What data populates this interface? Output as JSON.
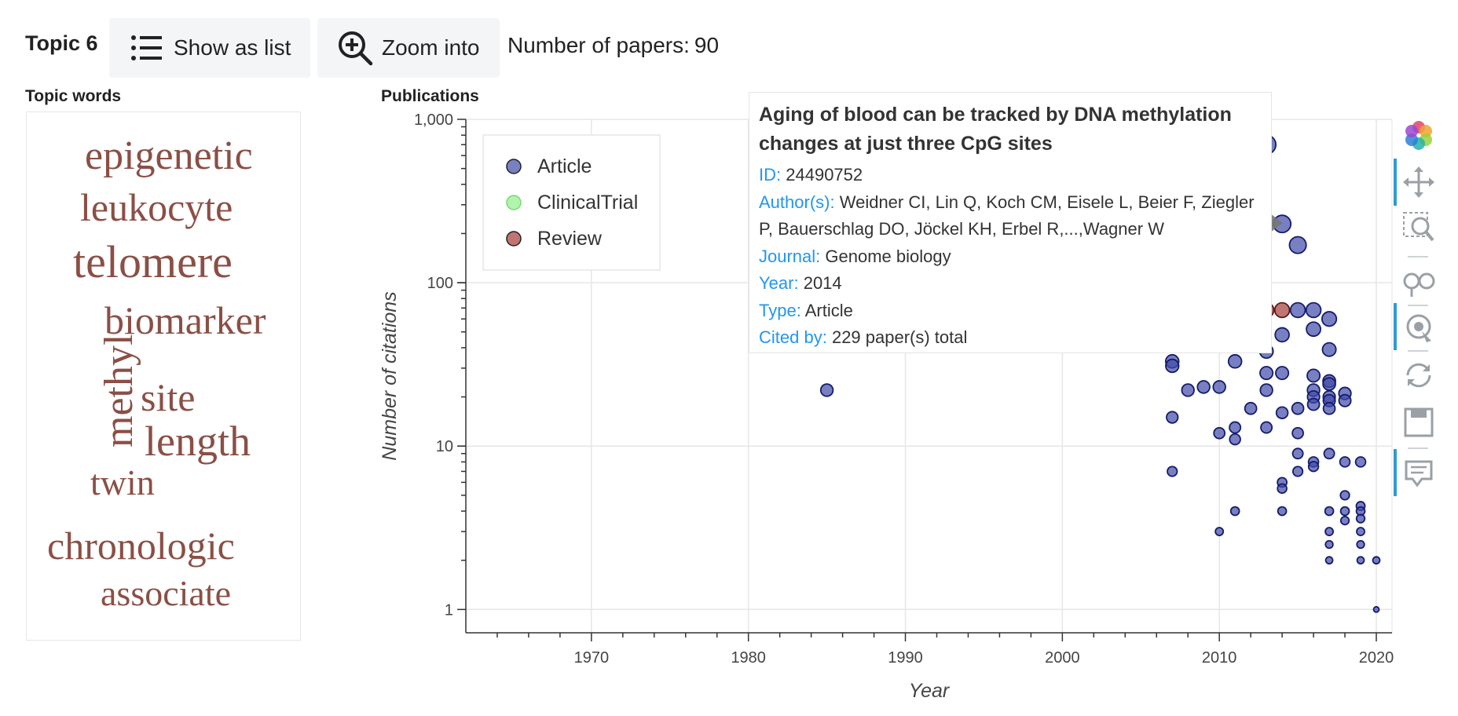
{
  "header": {
    "topic_title": "Topic 6",
    "show_as_list_label": "Show as list",
    "zoom_into_label": "Zoom into",
    "papers_label": "Number of papers:",
    "papers_count": "90"
  },
  "topic_words_label": "Topic words",
  "publications_label": "Publications",
  "topic_words": [
    "epigenetic",
    "leukocyte",
    "telomere",
    "biomarker",
    "methyl",
    "site",
    "length",
    "twin",
    "chronologic",
    "associate"
  ],
  "colors": {
    "article": "#3f4aa8",
    "clinical_trial": "#8ef08a",
    "review": "#a63a36",
    "word": "#8b4f45",
    "tooltip_key": "#2196f3"
  },
  "legend": [
    {
      "label": "Article",
      "color": "#3f4aa8"
    },
    {
      "label": "ClinicalTrial",
      "color": "#8ef08a"
    },
    {
      "label": "Review",
      "color": "#a63a36"
    }
  ],
  "tooltip": {
    "title": "Aging of blood can be tracked by DNA methylation changes at just three CpG sites",
    "id_key": "ID:",
    "id": "24490752",
    "authors_key": "Author(s):",
    "authors": "Weidner CI, Lin Q, Koch CM, Eisele L, Beier F, Ziegler P, Bauerschlag DO, Jöckel KH, Erbel R,...,Wagner W",
    "journal_key": "Journal:",
    "journal": "Genome biology",
    "year_key": "Year:",
    "year": "2014",
    "type_key": "Type:",
    "type": "Article",
    "cited_key": "Cited by:",
    "cited": "229 paper(s) total"
  },
  "toolbar": [
    "bokeh-logo-icon",
    "pan-icon",
    "box-zoom-icon",
    "wheel-zoom-icon",
    "tap-icon",
    "reset-icon",
    "save-icon",
    "hover-icon"
  ],
  "chart_data": {
    "type": "scatter",
    "xlabel": "Year",
    "ylabel": "Number of citations",
    "x_ticks": [
      1970,
      1980,
      1990,
      2000,
      2010,
      2020
    ],
    "y_ticks": [
      1,
      10,
      100,
      1000
    ],
    "y_tick_labels": [
      "1",
      "10",
      "100",
      "1,000"
    ],
    "xlim": [
      1962,
      2021
    ],
    "ylim": [
      0.72,
      1000
    ],
    "y_scale": "log",
    "grid": true,
    "legend_position": "top-left",
    "series": [
      {
        "name": "Article",
        "points": [
          [
            1985,
            22
          ],
          [
            2007,
            33
          ],
          [
            2007,
            31
          ],
          [
            2007,
            15
          ],
          [
            2007,
            7
          ],
          [
            2008,
            22
          ],
          [
            2009,
            23
          ],
          [
            2010,
            23
          ],
          [
            2010,
            12
          ],
          [
            2011,
            33
          ],
          [
            2011,
            13
          ],
          [
            2011,
            11
          ],
          [
            2011,
            4
          ],
          [
            2012,
            17
          ],
          [
            2013,
            700
          ],
          [
            2013,
            38
          ],
          [
            2013,
            28
          ],
          [
            2013,
            22
          ],
          [
            2013,
            13
          ],
          [
            2014,
            229
          ],
          [
            2014,
            48
          ],
          [
            2014,
            28
          ],
          [
            2014,
            16
          ],
          [
            2014,
            6
          ],
          [
            2014,
            5.5
          ],
          [
            2014,
            4
          ],
          [
            2015,
            170
          ],
          [
            2015,
            68
          ],
          [
            2015,
            17
          ],
          [
            2015,
            12
          ],
          [
            2015,
            9
          ],
          [
            2015,
            7
          ],
          [
            2016,
            68
          ],
          [
            2016,
            52
          ],
          [
            2016,
            27
          ],
          [
            2016,
            22
          ],
          [
            2016,
            20
          ],
          [
            2016,
            18
          ],
          [
            2016,
            8
          ],
          [
            2016,
            7.5
          ],
          [
            2017,
            60
          ],
          [
            2017,
            39
          ],
          [
            2017,
            25
          ],
          [
            2017,
            24
          ],
          [
            2017,
            20
          ],
          [
            2017,
            19
          ],
          [
            2017,
            17
          ],
          [
            2017,
            9
          ],
          [
            2017,
            4
          ],
          [
            2017,
            3
          ],
          [
            2017,
            2.5
          ],
          [
            2017,
            2
          ],
          [
            2018,
            21
          ],
          [
            2018,
            19
          ],
          [
            2018,
            8
          ],
          [
            2018,
            5
          ],
          [
            2018,
            4
          ],
          [
            2018,
            3.5
          ],
          [
            2019,
            8
          ],
          [
            2019,
            4.3
          ],
          [
            2019,
            4
          ],
          [
            2019,
            3.6
          ],
          [
            2019,
            3
          ],
          [
            2019,
            2.5
          ],
          [
            2019,
            2
          ],
          [
            2020,
            2
          ],
          [
            2020,
            1
          ],
          [
            2010,
            3
          ]
        ]
      },
      {
        "name": "Review",
        "points": [
          [
            2013,
            68
          ],
          [
            2014,
            68
          ]
        ]
      }
    ]
  }
}
